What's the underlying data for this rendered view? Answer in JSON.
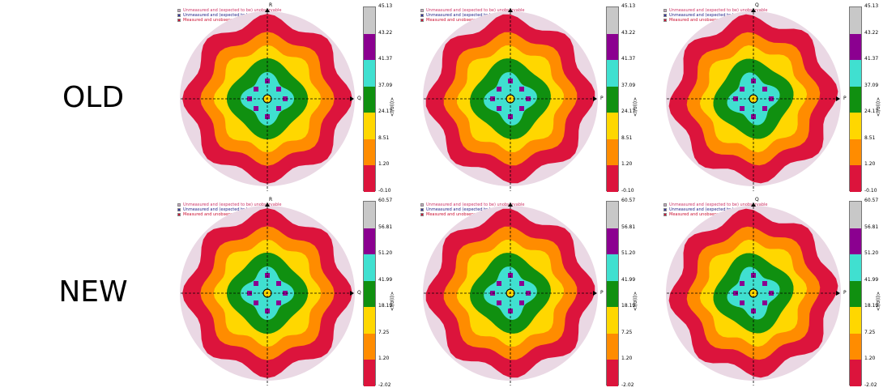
{
  "row_labels": {
    "old": "OLD",
    "new": "NEW"
  },
  "legend": [
    {
      "text": "Unmeasured and (expected to be) unobservable",
      "color": "#c8a8c0",
      "text_color": "#cc3366"
    },
    {
      "text": "Unmeasured and (expected to be) observable",
      "color": "#3030a0",
      "text_color": "#222288"
    },
    {
      "text": "Measured and unobserved",
      "color": "#cc1133",
      "text_color": "#cc1133"
    }
  ],
  "colorbar_colors": [
    "#dc143c",
    "#ff8c00",
    "#ffd700",
    "#109010",
    "#40e0d0",
    "#8b0090",
    "#c8c8c8"
  ],
  "colorbar_unit": "<I/σ(I)>",
  "chart_data": [
    {
      "type": "heatmap",
      "row": "OLD",
      "col": 1,
      "vertical_axis": "R",
      "horizontal_axis": "Q",
      "scale": [
        -0.1,
        1.2,
        8.51,
        24.17,
        37.09,
        41.37,
        43.22,
        45.13
      ]
    },
    {
      "type": "heatmap",
      "row": "OLD",
      "col": 2,
      "vertical_axis": "",
      "horizontal_axis": "P",
      "scale": [
        -0.1,
        1.2,
        8.51,
        24.17,
        37.09,
        41.37,
        43.22,
        45.13
      ]
    },
    {
      "type": "heatmap",
      "row": "OLD",
      "col": 3,
      "vertical_axis": "Q",
      "horizontal_axis": "P",
      "scale": [
        -0.1,
        1.2,
        8.51,
        24.17,
        37.09,
        41.37,
        43.22,
        45.13
      ]
    },
    {
      "type": "heatmap",
      "row": "NEW",
      "col": 1,
      "vertical_axis": "R",
      "horizontal_axis": "Q",
      "scale": [
        -2.02,
        1.2,
        7.25,
        18.19,
        41.99,
        51.2,
        56.81,
        60.57
      ]
    },
    {
      "type": "heatmap",
      "row": "NEW",
      "col": 2,
      "vertical_axis": "",
      "horizontal_axis": "P",
      "scale": [
        -2.02,
        1.2,
        7.25,
        18.19,
        41.99,
        51.2,
        56.81,
        60.57
      ]
    },
    {
      "type": "heatmap",
      "row": "NEW",
      "col": 3,
      "vertical_axis": "Q",
      "horizontal_axis": "P",
      "scale": [
        -2.02,
        1.2,
        7.25,
        18.19,
        41.99,
        51.2,
        56.81,
        60.57
      ]
    }
  ]
}
